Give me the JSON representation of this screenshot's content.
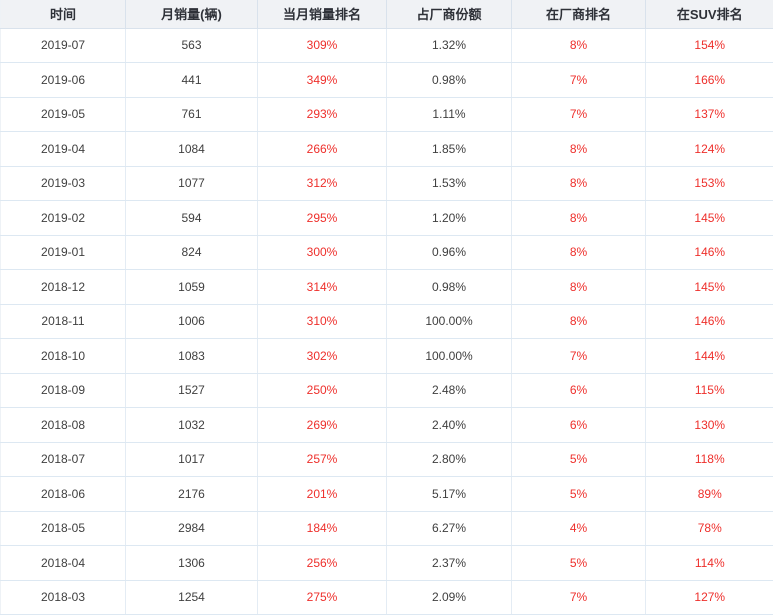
{
  "table": {
    "columns": [
      {
        "key": "time",
        "label": "时间"
      },
      {
        "key": "sales",
        "label": "月销量(辆)"
      },
      {
        "key": "month_rank",
        "label": "当月销量排名"
      },
      {
        "key": "share",
        "label": "占厂商份额"
      },
      {
        "key": "mfr_rank",
        "label": "在厂商排名"
      },
      {
        "key": "suv_rank",
        "label": "在SUV排名"
      }
    ],
    "red_columns": [
      2,
      4,
      5
    ],
    "rows": [
      [
        "2019-07",
        "563",
        "309%",
        "1.32%",
        "8%",
        "154%"
      ],
      [
        "2019-06",
        "441",
        "349%",
        "0.98%",
        "7%",
        "166%"
      ],
      [
        "2019-05",
        "761",
        "293%",
        "1.11%",
        "7%",
        "137%"
      ],
      [
        "2019-04",
        "1084",
        "266%",
        "1.85%",
        "8%",
        "124%"
      ],
      [
        "2019-03",
        "1077",
        "312%",
        "1.53%",
        "8%",
        "153%"
      ],
      [
        "2019-02",
        "594",
        "295%",
        "1.20%",
        "8%",
        "145%"
      ],
      [
        "2019-01",
        "824",
        "300%",
        "0.96%",
        "8%",
        "146%"
      ],
      [
        "2018-12",
        "1059",
        "314%",
        "0.98%",
        "8%",
        "145%"
      ],
      [
        "2018-11",
        "1006",
        "310%",
        "100.00%",
        "8%",
        "146%"
      ],
      [
        "2018-10",
        "1083",
        "302%",
        "100.00%",
        "7%",
        "144%"
      ],
      [
        "2018-09",
        "1527",
        "250%",
        "2.48%",
        "6%",
        "115%"
      ],
      [
        "2018-08",
        "1032",
        "269%",
        "2.40%",
        "6%",
        "130%"
      ],
      [
        "2018-07",
        "1017",
        "257%",
        "2.80%",
        "5%",
        "118%"
      ],
      [
        "2018-06",
        "2176",
        "201%",
        "5.17%",
        "5%",
        "89%"
      ],
      [
        "2018-05",
        "2984",
        "184%",
        "6.27%",
        "4%",
        "78%"
      ],
      [
        "2018-04",
        "1306",
        "256%",
        "2.37%",
        "5%",
        "114%"
      ],
      [
        "2018-03",
        "1254",
        "275%",
        "2.09%",
        "7%",
        "127%"
      ]
    ]
  },
  "colors": {
    "header_bg": "#f0f2f5",
    "header_text": "#2e3138",
    "body_text": "#3f3f3f",
    "red_text": "#ee2f2b",
    "header_border": "#d9e2ec",
    "row_border": "#dde8f2"
  }
}
